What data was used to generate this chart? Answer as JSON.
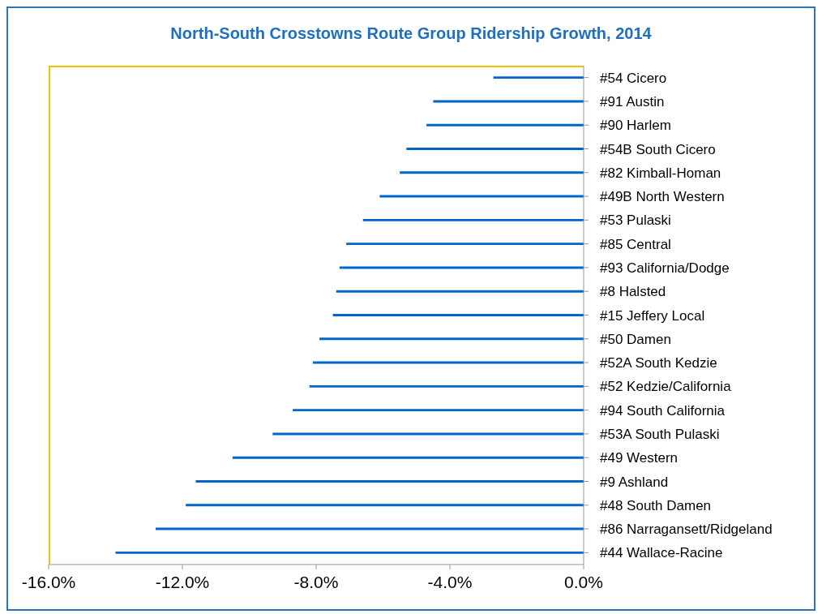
{
  "chart_data": {
    "type": "bar",
    "orientation": "horizontal",
    "title": "North-South Crosstowns Route Group Ridership Growth, 2014",
    "categories": [
      "#54 Cicero",
      "#91 Austin",
      "#90 Harlem",
      "#54B South Cicero",
      "#82 Kimball-Homan",
      "#49B North Western",
      "#53 Pulaski",
      "#85 Central",
      "#93 California/Dodge",
      "#8 Halsted",
      "#15 Jeffery Local",
      "#50 Damen",
      "#52A South Kedzie",
      "#52 Kedzie/California",
      "#94 South California",
      "#53A South Pulaski",
      "#49 Western",
      "#9 Ashland",
      "#48 South Damen",
      "#86 Narragansett/Ridgeland",
      "#44 Wallace-Racine"
    ],
    "values": [
      -2.7,
      -4.5,
      -4.7,
      -5.3,
      -5.5,
      -6.1,
      -6.6,
      -7.1,
      -7.3,
      -7.4,
      -7.5,
      -7.9,
      -8.1,
      -8.2,
      -8.7,
      -9.3,
      -10.5,
      -11.6,
      -11.9,
      -12.8,
      -14.0
    ],
    "color": "#0066cc",
    "xlim": [
      -16,
      0
    ],
    "xticks": [
      {
        "value": -16,
        "label": "-16.0%"
      },
      {
        "value": -12,
        "label": "-12.0%"
      },
      {
        "value": -8,
        "label": "-8.0%"
      },
      {
        "value": -4,
        "label": "-4.0%"
      },
      {
        "value": 0,
        "label": "0.0%"
      }
    ],
    "grid": false,
    "legend": false
  }
}
